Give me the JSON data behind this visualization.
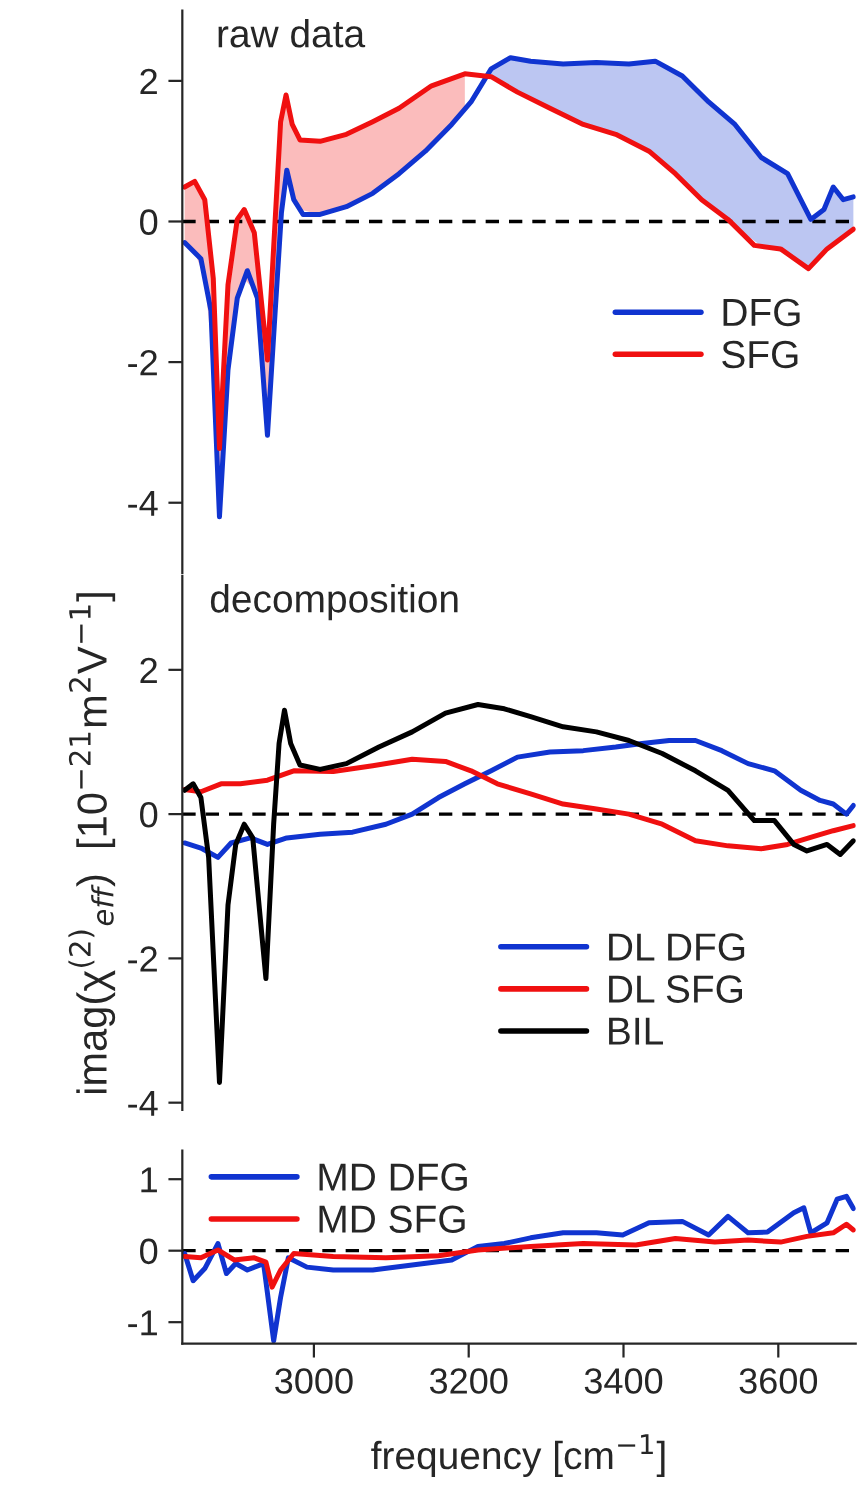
{
  "chart_data": [
    {
      "type": "line",
      "title": "raw data",
      "xlim": [
        2830,
        3700
      ],
      "ylim": [
        -5,
        3
      ],
      "yticks": [
        -4,
        -2,
        0,
        2
      ],
      "tick_labels": "y",
      "legend": "right",
      "grid": false,
      "ref_lines": [
        {
          "axis": "y",
          "value": 0,
          "color": "#000000",
          "line_style": "dashed"
        }
      ],
      "series": [
        {
          "name": "DFG",
          "color": "#1034d0",
          "x": [
            2833,
            2854,
            2867,
            2878,
            2889,
            2901,
            2914,
            2927,
            2940,
            2950,
            2958,
            2965,
            2974,
            2986,
            3008,
            3042,
            3076,
            3110,
            3144,
            3178,
            3203,
            3229,
            3254,
            3280,
            3322,
            3365,
            3407,
            3441,
            3476,
            3510,
            3544,
            3578,
            3612,
            3629,
            3642,
            3659,
            3671,
            3684,
            3697
          ],
          "values": [
            -0.3,
            -0.53,
            -1.27,
            -4.2,
            -2.11,
            -1.09,
            -0.7,
            -1.09,
            -3.04,
            -1.27,
            0.12,
            0.73,
            0.31,
            0.1,
            0.1,
            0.21,
            0.4,
            0.68,
            1.0,
            1.38,
            1.7,
            2.17,
            2.33,
            2.28,
            2.24,
            2.26,
            2.24,
            2.28,
            2.07,
            1.7,
            1.38,
            0.91,
            0.68,
            0.31,
            0.03,
            0.17,
            0.49,
            0.31,
            0.35
          ],
          "upper": [
            null,
            null,
            null,
            null,
            null,
            null,
            null,
            null,
            null,
            null,
            null,
            null,
            null,
            null,
            null,
            null,
            null,
            null,
            null,
            null,
            null,
            2.17,
            2.33,
            2.28,
            2.24,
            2.26,
            2.24,
            2.28,
            2.07,
            1.7,
            1.38,
            0.91,
            0.68,
            0.31,
            0.03,
            0.17,
            0.49,
            0.31,
            0.35
          ],
          "lower": [
            null,
            null,
            null,
            null,
            null,
            null,
            null,
            null,
            null,
            null,
            null,
            null,
            null,
            null,
            null,
            null,
            null,
            null,
            null,
            null,
            null,
            2.06,
            1.9,
            1.75,
            1.52,
            1.32,
            1.15,
            0.92,
            0.58,
            0.24,
            -0.07,
            -0.35,
            -0.46,
            -0.59,
            -0.64,
            -0.44,
            -0.32,
            -0.22,
            -0.11
          ]
        },
        {
          "name": "SFG",
          "color": "#f01010",
          "x": [
            2833,
            2846,
            2859,
            2870,
            2878,
            2889,
            2901,
            2910,
            2923,
            2940,
            2950,
            2957,
            2964,
            2972,
            2982,
            3008,
            3042,
            3076,
            3110,
            3152,
            3195,
            3229,
            3263,
            3305,
            3348,
            3390,
            3433,
            3467,
            3501,
            3535,
            3569,
            3603,
            3639,
            3663,
            3697
          ],
          "values": [
            0.49,
            0.57,
            0.31,
            -0.81,
            -3.23,
            -0.9,
            0.03,
            0.17,
            -0.16,
            -1.97,
            0.03,
            1.42,
            1.8,
            1.38,
            1.16,
            1.14,
            1.24,
            1.42,
            1.61,
            1.93,
            2.1,
            2.06,
            1.84,
            1.61,
            1.38,
            1.24,
            1.0,
            0.68,
            0.31,
            0.03,
            -0.34,
            -0.39,
            -0.67,
            -0.39,
            -0.11
          ],
          "upper": [
            0.49,
            0.57,
            0.31,
            -0.81,
            -3.23,
            -0.9,
            0.03,
            0.17,
            -0.16,
            -1.97,
            0.03,
            1.42,
            1.8,
            1.38,
            1.16,
            1.14,
            1.24,
            1.42,
            1.61,
            1.93,
            2.1,
            null,
            null,
            null,
            null,
            null,
            null,
            null,
            null,
            null,
            null,
            null,
            null,
            null,
            null
          ],
          "lower": [
            -0.3,
            -0.44,
            -0.81,
            -2.07,
            -4.2,
            -2.11,
            -1.09,
            -0.82,
            -0.97,
            -3.04,
            -1.27,
            -0.1,
            0.64,
            0.4,
            0.17,
            0.1,
            0.21,
            0.4,
            0.68,
            1.09,
            1.6,
            null,
            null,
            null,
            null,
            null,
            null,
            null,
            null,
            null,
            null,
            null,
            null,
            null,
            null
          ]
        }
      ]
    },
    {
      "type": "line",
      "title": "decomposition",
      "ylabel": "imag(χ$^{(2)}$$_{eff}$)  [10$^{−21}$m$^{2}$V$^{−1}$]",
      "xlim": [
        2830,
        3700
      ],
      "ylim": [
        -4.1,
        3.3
      ],
      "yticks": [
        -4,
        -2,
        0,
        2
      ],
      "tick_labels": "y",
      "legend": "center",
      "grid": false,
      "ref_lines": [
        {
          "axis": "y",
          "value": 0,
          "color": "#000000",
          "line_style": "dashed"
        }
      ],
      "series": [
        {
          "name": "DL DFG",
          "color": "#1034d0",
          "x": [
            2833,
            2854,
            2876,
            2893,
            2918,
            2940,
            2965,
            3008,
            3050,
            3093,
            3127,
            3161,
            3195,
            3229,
            3263,
            3305,
            3348,
            3390,
            3424,
            3459,
            3493,
            3527,
            3561,
            3595,
            3629,
            3654,
            3671,
            3688,
            3697
          ],
          "values": [
            -0.4,
            -0.47,
            -0.6,
            -0.4,
            -0.33,
            -0.42,
            -0.33,
            -0.28,
            -0.25,
            -0.14,
            0,
            0.23,
            0.42,
            0.6,
            0.79,
            0.86,
            0.88,
            0.93,
            0.98,
            1.02,
            1.02,
            0.88,
            0.7,
            0.6,
            0.33,
            0.19,
            0.14,
            0,
            0.12
          ]
        },
        {
          "name": "DL SFG",
          "color": "#f01010",
          "x": [
            2833,
            2854,
            2880,
            2905,
            2940,
            2974,
            3025,
            3076,
            3127,
            3170,
            3203,
            3237,
            3280,
            3322,
            3365,
            3407,
            3450,
            3493,
            3535,
            3578,
            3612,
            3646,
            3671,
            3697
          ],
          "values": [
            0.34,
            0.31,
            0.42,
            0.42,
            0.47,
            0.6,
            0.59,
            0.67,
            0.76,
            0.73,
            0.6,
            0.42,
            0.28,
            0.14,
            0.07,
            0,
            -0.14,
            -0.37,
            -0.44,
            -0.48,
            -0.42,
            -0.31,
            -0.23,
            -0.16
          ]
        },
        {
          "name": "BIL",
          "color": "#000000",
          "x": [
            2833,
            2844,
            2854,
            2864,
            2878,
            2889,
            2899,
            2910,
            2921,
            2938,
            2948,
            2955,
            2962,
            2970,
            2982,
            3008,
            3042,
            3084,
            3127,
            3170,
            3212,
            3246,
            3280,
            3322,
            3365,
            3407,
            3450,
            3493,
            3535,
            3569,
            3595,
            3620,
            3637,
            3663,
            3680,
            3697
          ],
          "values": [
            0.33,
            0.42,
            0.23,
            -0.6,
            -3.72,
            -1.26,
            -0.42,
            -0.14,
            -0.33,
            -2.28,
            -0.14,
            0.98,
            1.44,
            0.98,
            0.68,
            0.62,
            0.7,
            0.93,
            1.14,
            1.4,
            1.52,
            1.46,
            1.35,
            1.21,
            1.14,
            1.02,
            0.84,
            0.6,
            0.33,
            -0.09,
            -0.09,
            -0.42,
            -0.51,
            -0.42,
            -0.56,
            -0.37
          ]
        }
      ]
    },
    {
      "type": "line",
      "xlabel": "frequency [cm$^{−1}$]",
      "xlim": [
        2830,
        3700
      ],
      "xticks": [
        3000,
        3200,
        3400,
        3600
      ],
      "ylim": [
        -1.3,
        1.4
      ],
      "yticks": [
        -1,
        0,
        1
      ],
      "legend": "top left",
      "grid": false,
      "ref_lines": [
        {
          "axis": "y",
          "value": 0,
          "color": "#000000",
          "line_style": "dashed"
        }
      ],
      "series": [
        {
          "name": "MD DFG",
          "color": "#1034d0",
          "x": [
            2833,
            2844,
            2859,
            2876,
            2887,
            2899,
            2914,
            2935,
            2948,
            2957,
            2967,
            2991,
            3025,
            3076,
            3127,
            3178,
            3212,
            3246,
            3280,
            3322,
            3365,
            3399,
            3433,
            3476,
            3510,
            3535,
            3561,
            3586,
            3620,
            3633,
            3642,
            3663,
            3676,
            3688,
            3697
          ],
          "values": [
            -0.04,
            -0.42,
            -0.25,
            0.1,
            -0.32,
            -0.18,
            -0.27,
            -0.18,
            -1.26,
            -0.65,
            -0.1,
            -0.23,
            -0.27,
            -0.27,
            -0.2,
            -0.13,
            0.06,
            0.1,
            0.18,
            0.25,
            0.25,
            0.22,
            0.39,
            0.41,
            0.22,
            0.48,
            0.25,
            0.26,
            0.53,
            0.6,
            0.25,
            0.39,
            0.72,
            0.76,
            0.59
          ]
        },
        {
          "name": "MD SFG",
          "color": "#f01010",
          "x": [
            2833,
            2854,
            2876,
            2897,
            2923,
            2938,
            2946,
            2957,
            2974,
            3025,
            3093,
            3161,
            3212,
            3280,
            3348,
            3416,
            3467,
            3518,
            3561,
            3603,
            3637,
            3671,
            3688,
            3697
          ],
          "values": [
            -0.08,
            -0.1,
            0.01,
            -0.13,
            -0.1,
            -0.16,
            -0.51,
            -0.27,
            -0.04,
            -0.08,
            -0.1,
            -0.07,
            0.01,
            0.06,
            0.1,
            0.08,
            0.17,
            0.12,
            0.15,
            0.12,
            0.2,
            0.25,
            0.37,
            0.29
          ]
        }
      ]
    }
  ]
}
